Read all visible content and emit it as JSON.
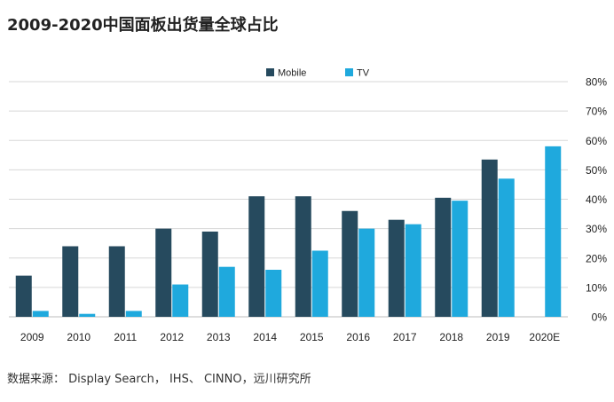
{
  "title": "2009-2020中国面板出货量全球占比",
  "source": "数据来源： Display Search， IHS、 CINNO，远川研究所",
  "colors": {
    "mobile": "#264a5e",
    "tv": "#1fa9dd",
    "grid": "#d7d7d7",
    "text": "#222222"
  },
  "chart_data": {
    "type": "bar",
    "title": "2009-2020中国面板出货量全球占比",
    "xlabel": "",
    "ylabel": "",
    "ylim": [
      0,
      80
    ],
    "yticks": [
      "0%",
      "10%",
      "20%",
      "30%",
      "40%",
      "50%",
      "60%",
      "70%",
      "80%"
    ],
    "grid": true,
    "legend_position": "top-center",
    "categories": [
      "2009",
      "2010",
      "2011",
      "2012",
      "2013",
      "2014",
      "2015",
      "2016",
      "2017",
      "2018",
      "2019",
      "2020E"
    ],
    "series": [
      {
        "name": "Mobile",
        "color": "#264a5e",
        "values": [
          14,
          24,
          24,
          30,
          29,
          41,
          41,
          36,
          33,
          40.5,
          53.5,
          null
        ]
      },
      {
        "name": "TV",
        "color": "#1fa9dd",
        "values": [
          2,
          1,
          2,
          11,
          17,
          16,
          22.5,
          30,
          31.5,
          39.5,
          47,
          58
        ]
      }
    ]
  }
}
